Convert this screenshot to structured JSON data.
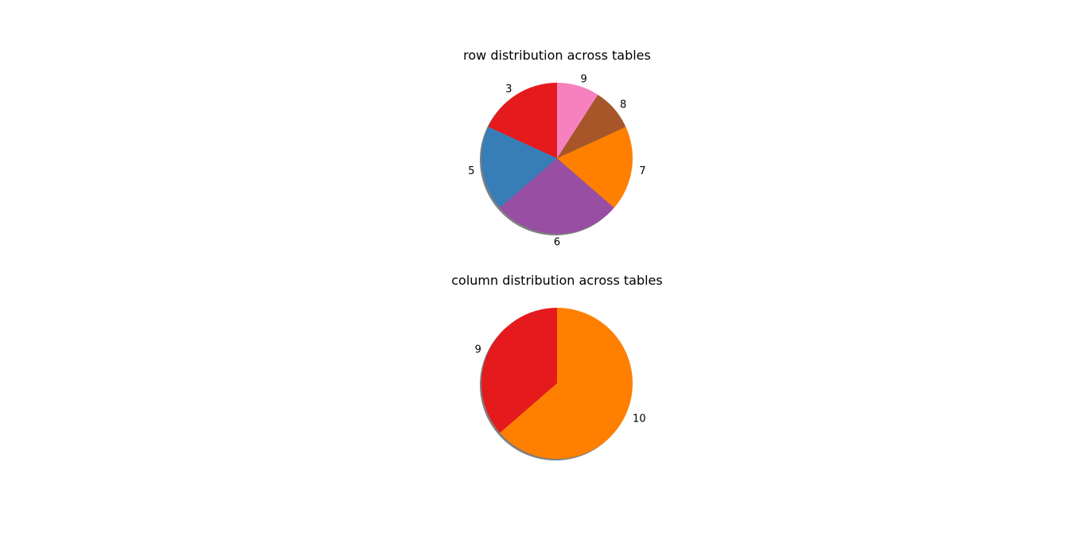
{
  "chart_data": [
    {
      "type": "pie",
      "title": "row distribution across tables",
      "labels": [
        "3",
        "5",
        "6",
        "7",
        "8",
        "9"
      ],
      "values": [
        2,
        2,
        3,
        2,
        1,
        1
      ],
      "colors": [
        "#e41a1c",
        "#377eb8",
        "#984ea3",
        "#ff7f00",
        "#a65628",
        "#f781bf"
      ],
      "start_angle_deg": 90,
      "direction": "counterclockwise",
      "shadow": true
    },
    {
      "type": "pie",
      "title": "column distribution across tables",
      "labels": [
        "9",
        "10"
      ],
      "values": [
        4,
        7
      ],
      "colors": [
        "#e41a1c",
        "#ff7f00"
      ],
      "start_angle_deg": 90,
      "direction": "counterclockwise",
      "shadow": true
    }
  ]
}
